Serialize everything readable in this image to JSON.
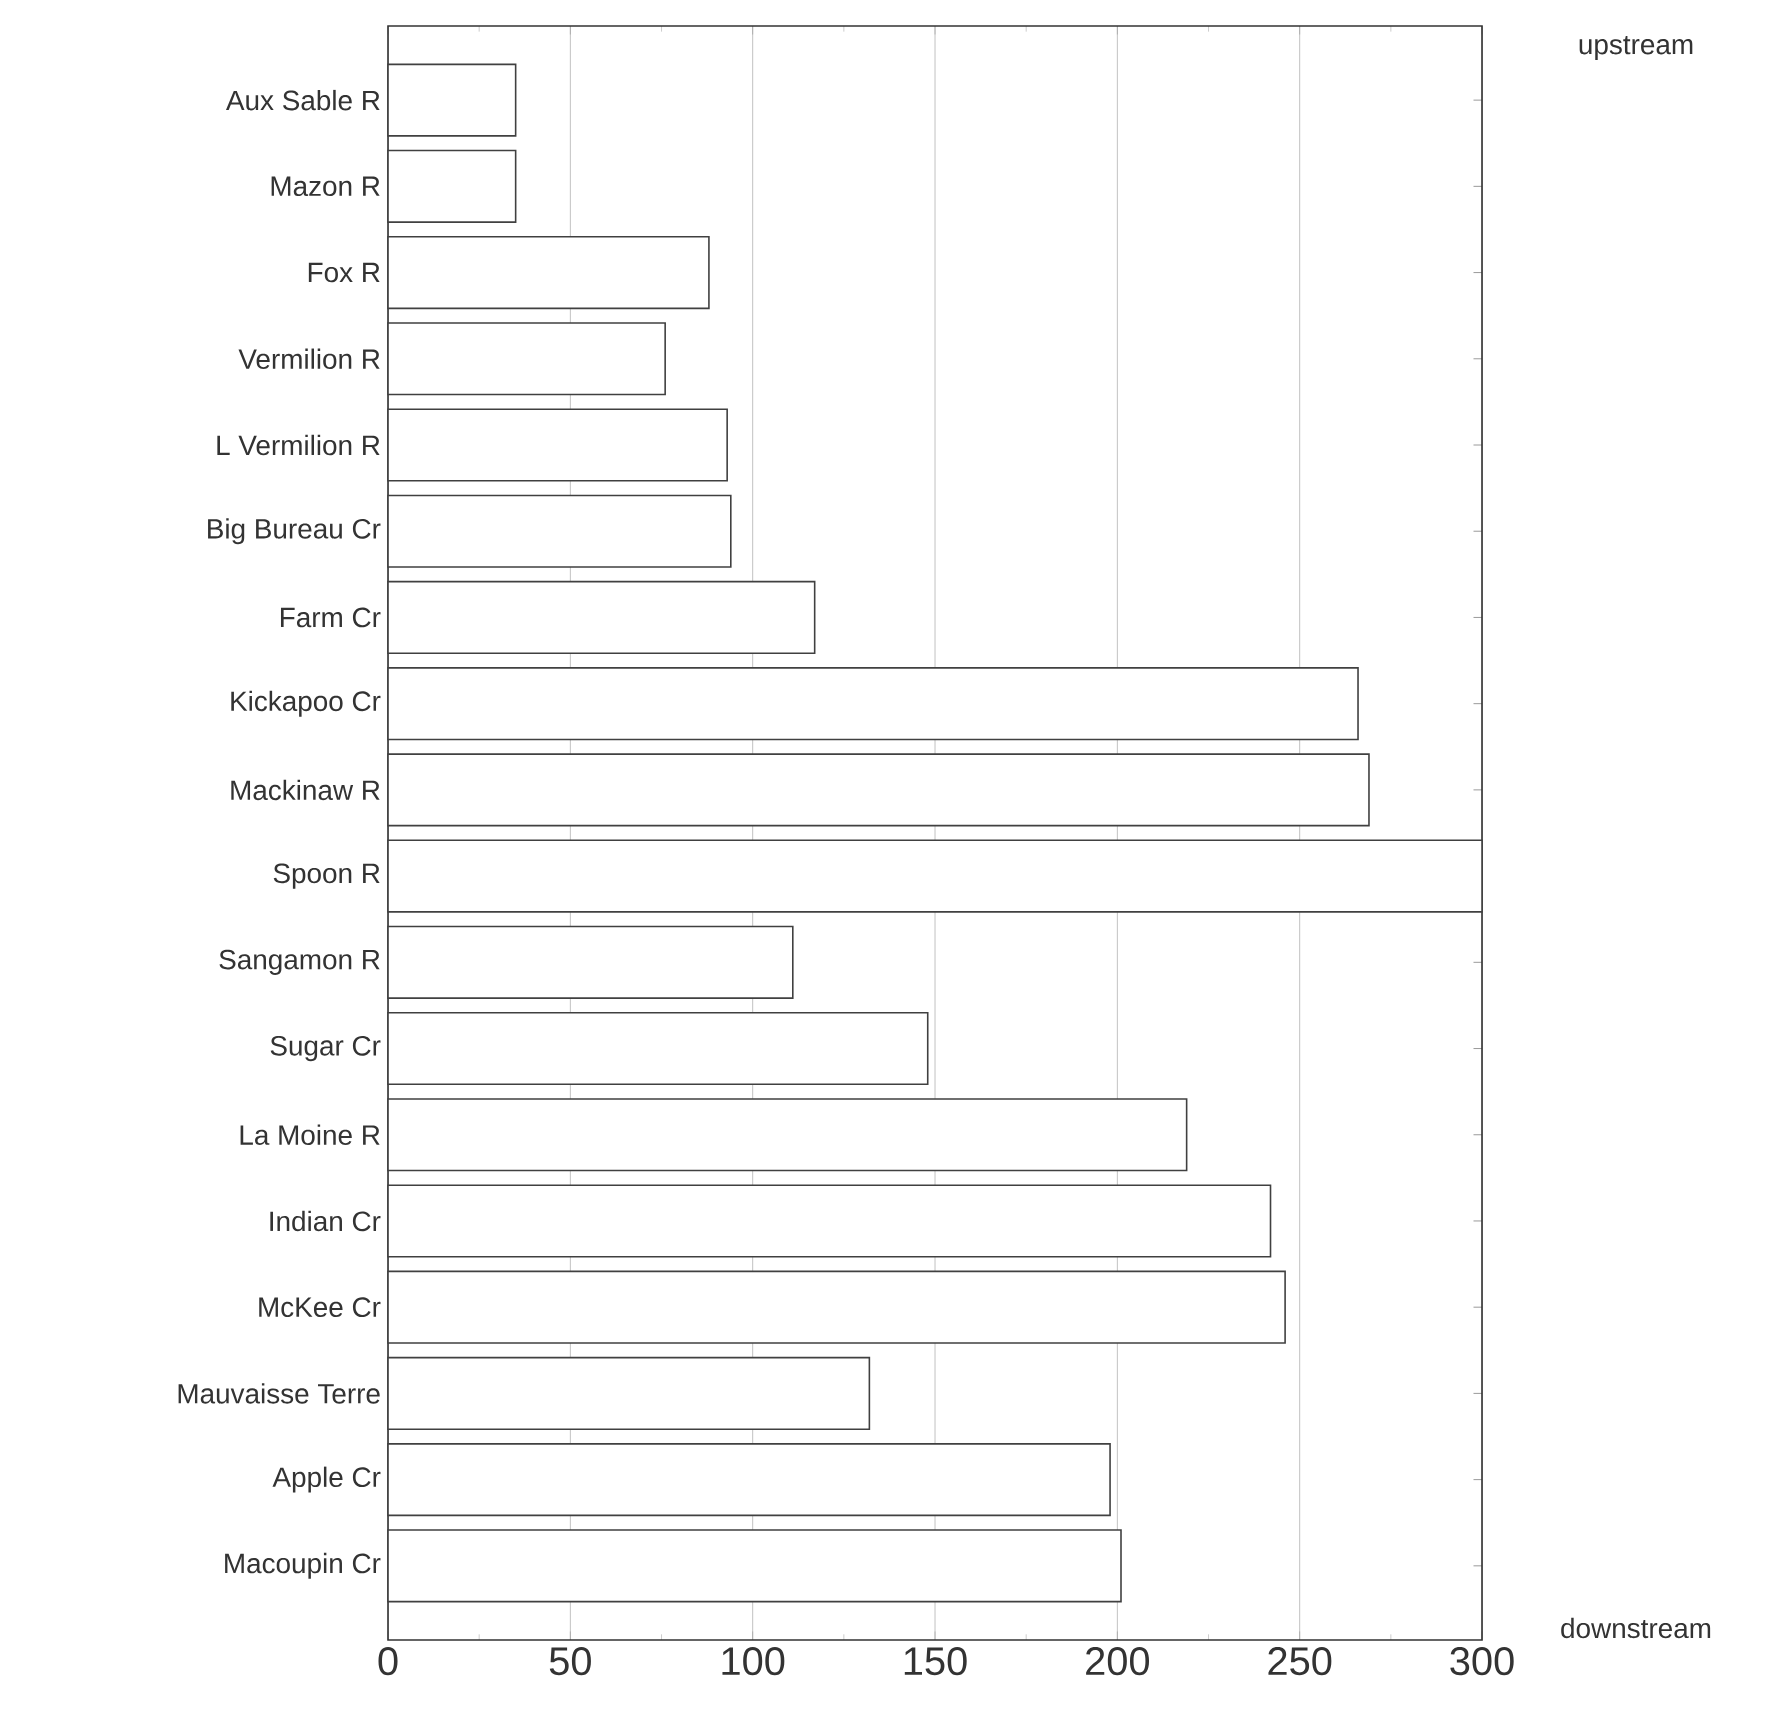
{
  "chart_data": {
    "type": "bar",
    "orientation": "horizontal",
    "categories": [
      "Aux Sable  R",
      "Mazon R",
      "Fox R",
      "Vermilion R",
      "L Vermilion R",
      "Big Bureau Cr",
      "Farm Cr",
      "Kickapoo Cr",
      "Mackinaw R",
      "Spoon R",
      "Sangamon R",
      "Sugar Cr",
      "La Moine R",
      "Indian Cr",
      "McKee Cr",
      "Mauvaisse Terre",
      "Apple Cr",
      "Macoupin Cr"
    ],
    "values": [
      35,
      35,
      88,
      76,
      93,
      94,
      117,
      266,
      269,
      300,
      111,
      148,
      219,
      242,
      246,
      132,
      198,
      201
    ],
    "color": "#ffffff",
    "xlim": [
      0,
      300
    ],
    "xticks": [
      0,
      50,
      100,
      150,
      200,
      250,
      300
    ],
    "grid": "x",
    "annotations": [
      "upstream",
      "downstream"
    ]
  }
}
